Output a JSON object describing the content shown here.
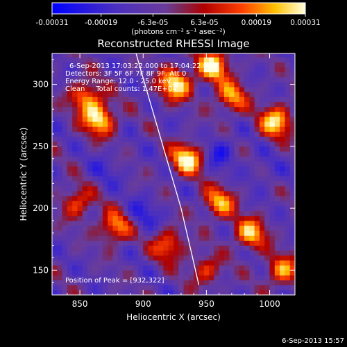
{
  "chart_data": {
    "type": "heatmap",
    "title": "Reconstructed RHESSI Image",
    "xlabel": "Heliocentric X (arcsec)",
    "ylabel": "Heliocentric Y (arcsec)",
    "xlim": [
      828,
      1020
    ],
    "ylim": [
      130,
      325
    ],
    "xticks": [
      850,
      900,
      950,
      1000
    ],
    "yticks": [
      150,
      200,
      250,
      300
    ],
    "colorbar": {
      "min": -0.00031,
      "max": 0.00031,
      "tick_values": [
        -0.00031,
        -0.00019,
        -6.3e-05,
        6.3e-05,
        0.00019,
        0.00031
      ],
      "tick_labels": [
        "-0.00031",
        "-0.00019",
        "-6.3e-05",
        "6.3e-05",
        "0.00019",
        "0.00031"
      ],
      "unit_label": "(photons cm⁻² s⁻¹ asec⁻²)"
    },
    "info_lines": [
      "6-Sep-2013 17:03:22.000 to 17:04:22.000",
      "Detectors: 3F 5F 6F 7F 8F 9F, Att 0",
      "Energy Range: 12.0 - 25.0 keV",
      "Clean     Total counts: 1.47E+04"
    ],
    "peak_label": "Position of Peak = [932,322]",
    "peak": {
      "x": 932,
      "y": 322
    },
    "limb_curve": {
      "x": [
        893,
        900,
        910,
        920,
        930,
        938,
        944
      ],
      "y": [
        330,
        305,
        270,
        235,
        200,
        165,
        138
      ]
    },
    "hot_spots": [
      {
        "x": 865,
        "y": 272,
        "value": 0.00029
      },
      {
        "x": 855,
        "y": 290,
        "value": 0.0002
      },
      {
        "x": 878,
        "y": 185,
        "value": 0.00021
      },
      {
        "x": 848,
        "y": 205,
        "value": 0.00015
      },
      {
        "x": 935,
        "y": 240,
        "value": 0.00031
      },
      {
        "x": 925,
        "y": 300,
        "value": 0.0003
      },
      {
        "x": 955,
        "y": 315,
        "value": 0.0003
      },
      {
        "x": 970,
        "y": 290,
        "value": 0.0002
      },
      {
        "x": 1005,
        "y": 270,
        "value": 0.00028
      },
      {
        "x": 960,
        "y": 205,
        "value": 0.00022
      },
      {
        "x": 985,
        "y": 180,
        "value": 0.00024
      },
      {
        "x": 920,
        "y": 170,
        "value": 0.00018
      },
      {
        "x": 1010,
        "y": 150,
        "value": 0.0002
      },
      {
        "x": 950,
        "y": 150,
        "value": 0.00012
      }
    ],
    "cold_spots": [
      {
        "x": 960,
        "y": 245,
        "value": -0.00022
      },
      {
        "x": 900,
        "y": 195,
        "value": -0.0002
      },
      {
        "x": 870,
        "y": 230,
        "value": -0.00015
      },
      {
        "x": 995,
        "y": 230,
        "value": -0.00014
      }
    ],
    "grid": false
  },
  "footer": {
    "timestamp": "6-Sep-2013 15:57"
  },
  "colors": {
    "background": "#000000",
    "text": "#ffffff",
    "limb": "#ffffff"
  }
}
